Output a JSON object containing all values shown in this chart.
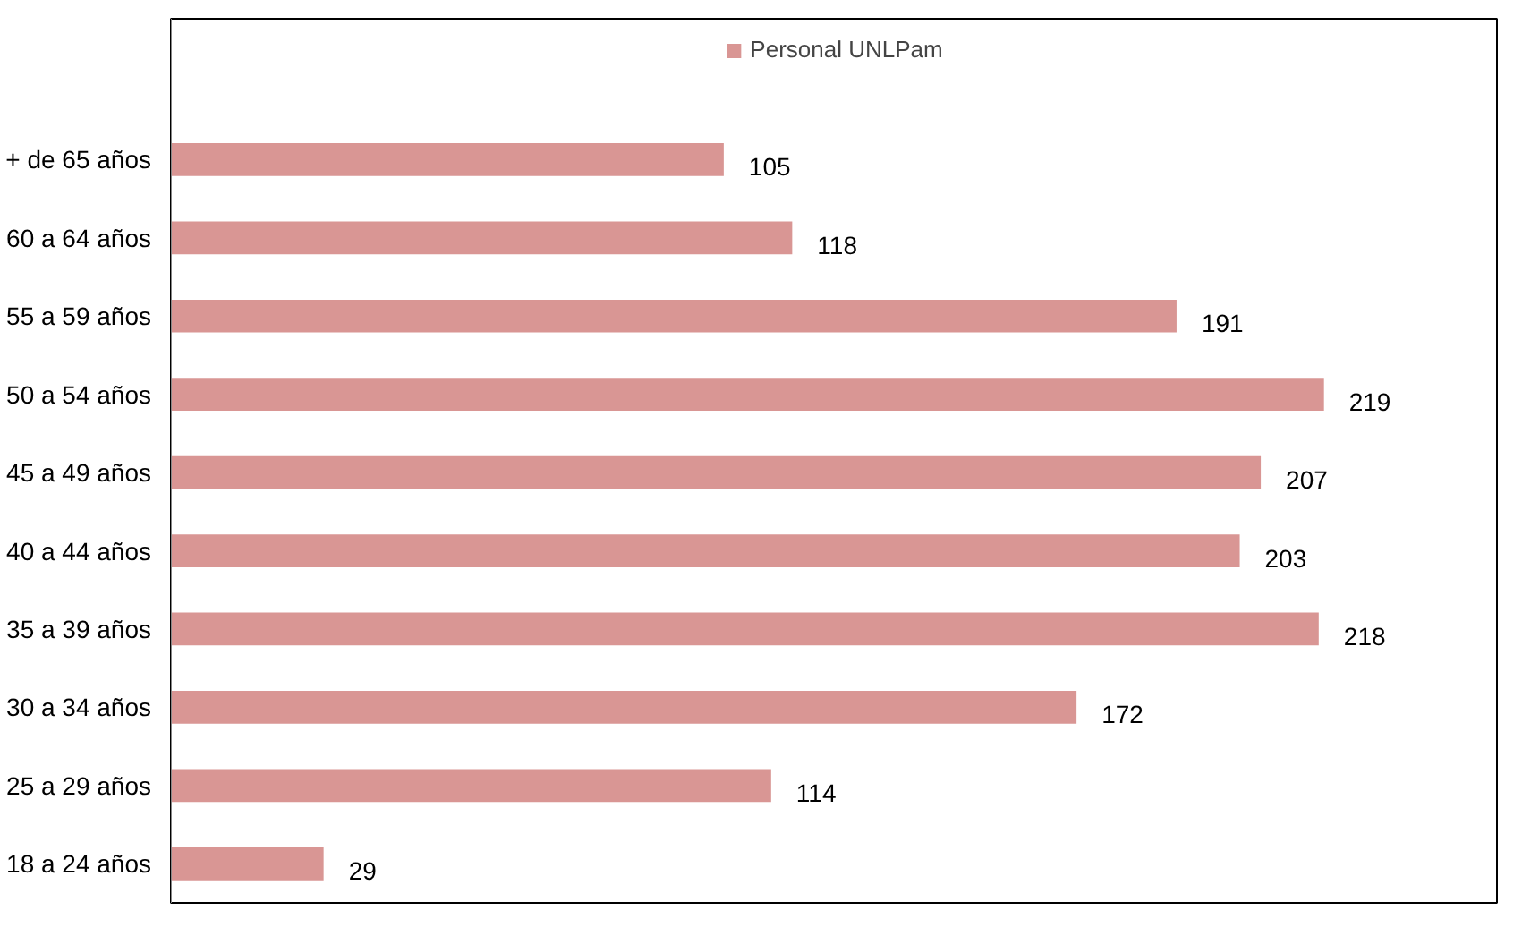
{
  "chart_data": {
    "type": "bar",
    "orientation": "horizontal",
    "categories": [
      "+ de 65 años",
      "60 a 64 años",
      "55 a 59 años",
      "50 a 54 años",
      "45 a 49 años",
      "40 a 44 años",
      "35 a 39 años",
      "30 a 34 años",
      "25 a 29 años",
      "18 a 24 años"
    ],
    "series": [
      {
        "name": "Personal UNLPam",
        "color": "#d99694",
        "values": [
          105,
          118,
          191,
          219,
          207,
          203,
          218,
          172,
          114,
          29
        ]
      }
    ],
    "data_labels": true,
    "legend": "top",
    "grid": false
  }
}
